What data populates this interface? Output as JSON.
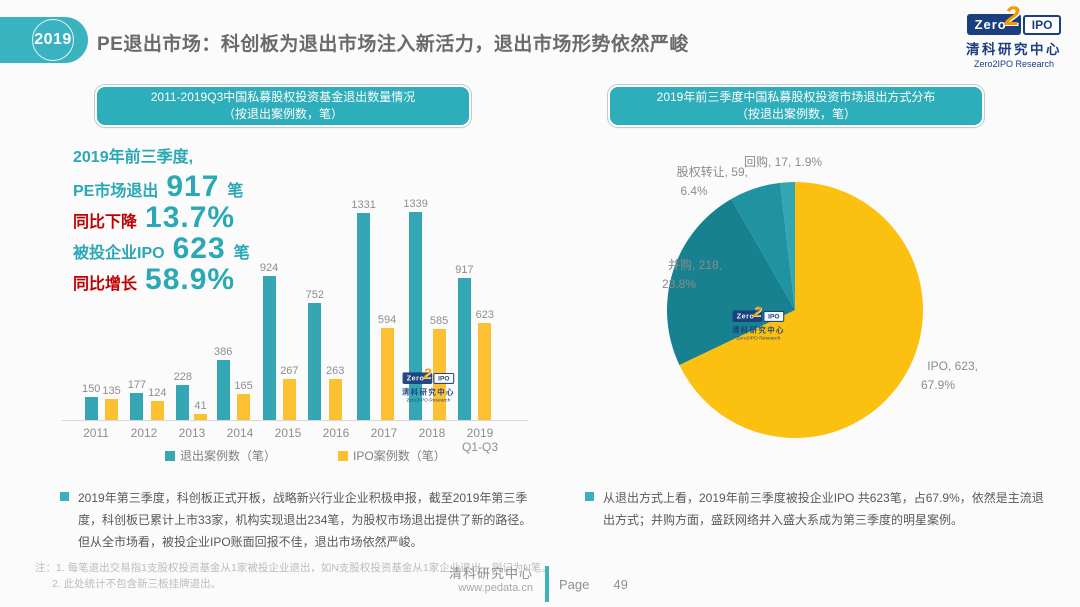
{
  "header": {
    "year_badge": "2019",
    "title": "PE退出市场：科创板为退出市场注入新活力，退出市场形势依然严峻"
  },
  "logo": {
    "zero": "Zero",
    "two": "2",
    "ipo": "IPO",
    "cn": "清科研究中心",
    "en": "Zero2IPO Research"
  },
  "banners": {
    "left_line1": "2011-2019Q3中国私募股权投资基金退出数量情况",
    "left_line2": "（按退出案例数，笔）",
    "right_line1": "2019年前三季度中国私募股权投资市场退出方式分布",
    "right_line2": "（按退出案例数，笔）"
  },
  "stats": {
    "intro": "2019年前三季度,",
    "rows": [
      {
        "label": "PE市场退出",
        "value": "917",
        "unit": "笔",
        "style": "teal"
      },
      {
        "label": "同比下降",
        "value": "13.7%",
        "unit": "",
        "style": "red"
      },
      {
        "label": "被投企业IPO",
        "value": "623",
        "unit": "笔",
        "style": "teal"
      },
      {
        "label": "同比增长",
        "value": "58.9%",
        "unit": "",
        "style": "red"
      }
    ]
  },
  "chart_data": [
    {
      "type": "bar",
      "title": "2011-2019Q3中国私募股权投资基金退出数量情况（按退出案例数，笔）",
      "categories": [
        "2011",
        "2012",
        "2013",
        "2014",
        "2015",
        "2016",
        "2017",
        "2018",
        "2019"
      ],
      "category_subs": [
        "",
        "",
        "",
        "",
        "",
        "",
        "",
        "",
        "Q1-Q3"
      ],
      "series": [
        {
          "name": "退出案例数（笔）",
          "color": "#35a7b4",
          "values": [
            150,
            177,
            228,
            386,
            924,
            752,
            1331,
            1339,
            917
          ]
        },
        {
          "name": "IPO案例数（笔）",
          "color": "#fcc132",
          "values": [
            135,
            124,
            41,
            165,
            267,
            263,
            594,
            585,
            623
          ]
        }
      ],
      "ylim": [
        0,
        1400
      ],
      "grid": false,
      "legend_position": "bottom"
    },
    {
      "type": "pie",
      "title": "2019年前三季度中国私募股权投资市场退出方式分布（按退出案例数，笔）",
      "start_angle_deg": 0,
      "direction": "clockwise",
      "slices": [
        {
          "label": "IPO",
          "value": 623,
          "pct": "67.9%",
          "color": "#fcc110",
          "display": [
            "IPO, 623,",
            "67.9%"
          ]
        },
        {
          "label": "并购",
          "value": 218,
          "pct": "23.8%",
          "color": "#17818f",
          "display": [
            "并购, 218,",
            "23.8%"
          ]
        },
        {
          "label": "股权转让",
          "value": 59,
          "pct": "6.4%",
          "color": "#2093a3",
          "display": [
            "股权转让, 59,",
            "6.4%"
          ]
        },
        {
          "label": "回购",
          "value": 17,
          "pct": "1.9%",
          "color": "#33a6b2",
          "display": [
            "回购, 17, 1.9%"
          ]
        }
      ]
    }
  ],
  "bullets": {
    "left": "2019年第三季度，科创板正式开板，战略新兴行业企业积极申报，截至2019年第三季度，科创板已累计上市33家，机构实现退出234笔，为股权市场退出提供了新的路径。但从全市场看，被投企业IPO账面回报不佳，退出市场依然严峻。",
    "right": "从退出方式上看，2019年前三季度被投企业IPO 共623笔，占67.9%，依然是主流退出方式；并购方面，盛跃网络并入盛大系成为第三季度的明星案例。"
  },
  "footnote": {
    "line1": "注：1. 每笔退出交易指1支股权投资基金从1家被投企业退出，如N支股权投资基金从1家企业退出，则记为N笔。",
    "line2": "2. 此处统计不包含新三板挂牌退出。"
  },
  "footer": {
    "brand": "清科研究中心",
    "site": "www.pedata.cn",
    "page_label": "Page",
    "page_number": "49"
  }
}
